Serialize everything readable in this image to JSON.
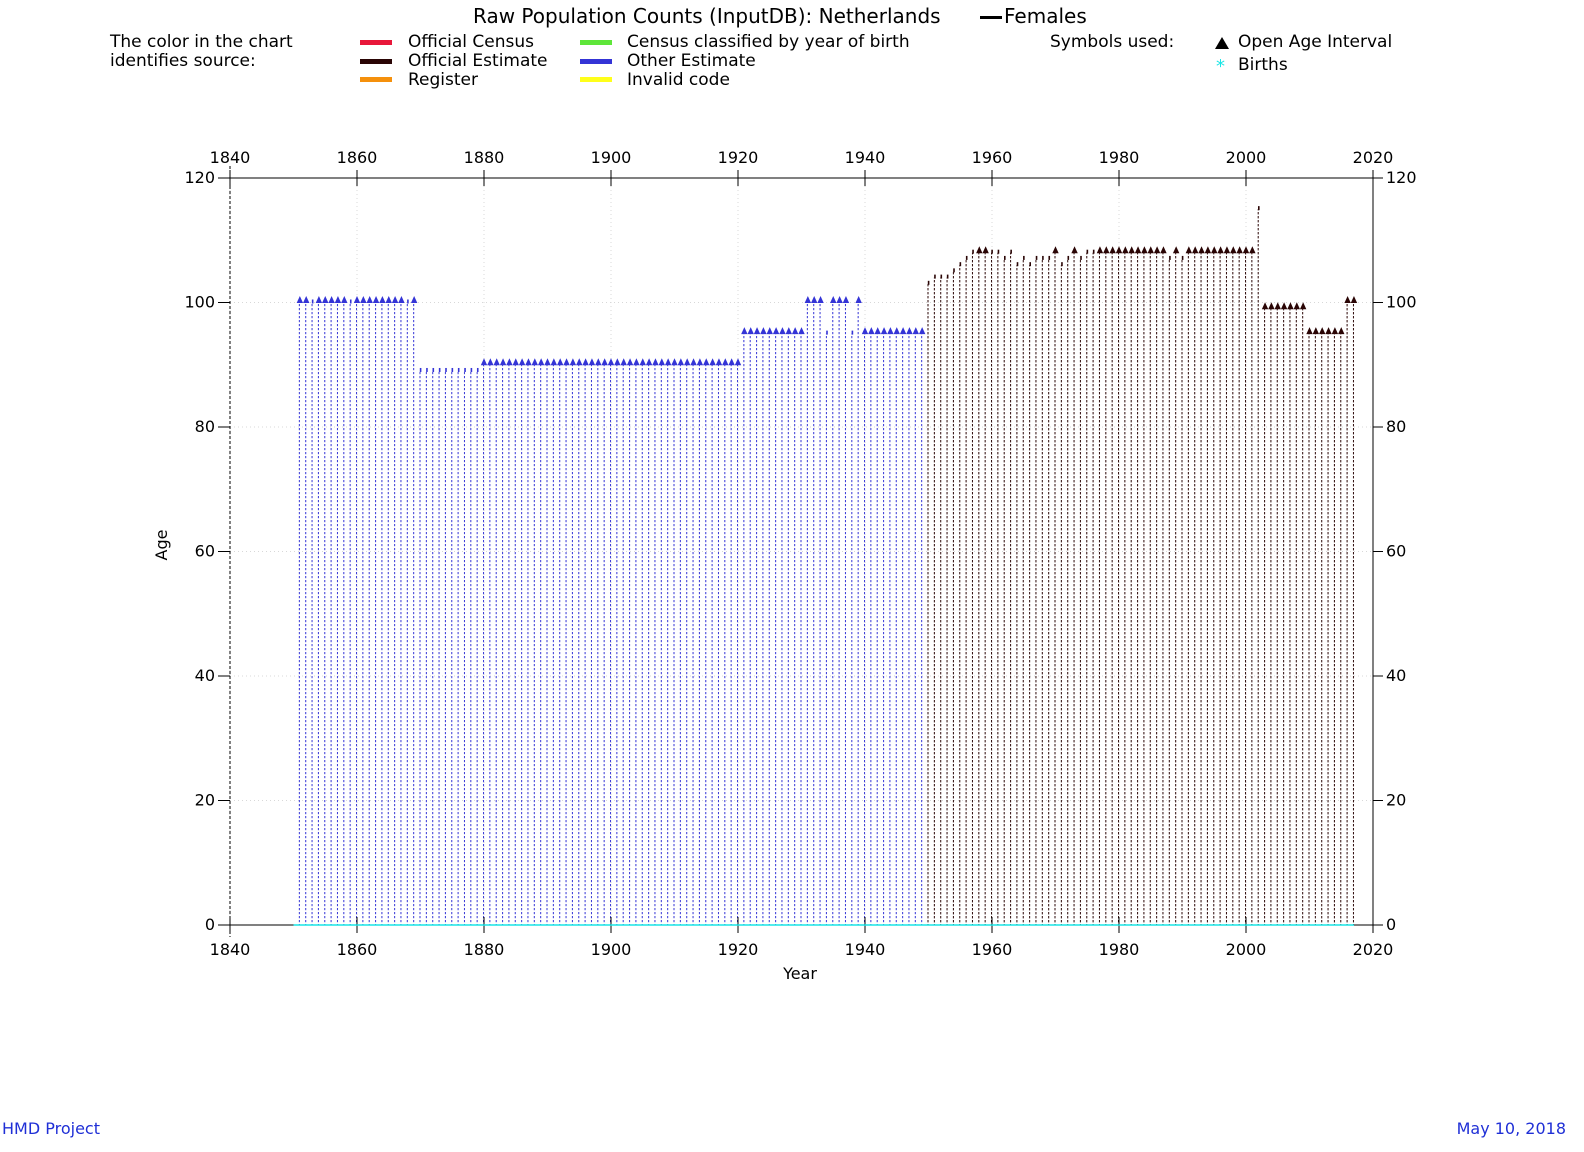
{
  "chart_data": {
    "type": "scatter",
    "title": "Raw Population Counts (InputDB): Netherlands",
    "title_series": "Females",
    "xlabel": "Year",
    "ylabel": "Age",
    "xlim": [
      1840,
      2020
    ],
    "ylim": [
      0,
      120
    ],
    "x_ticks": [
      1840,
      1860,
      1880,
      1900,
      1920,
      1940,
      1960,
      1980,
      2000,
      2020
    ],
    "y_ticks": [
      0,
      20,
      40,
      60,
      80,
      100,
      120
    ],
    "grid": true,
    "legend_source": {
      "caption_line1": "The color in the chart",
      "caption_line2": "identifies source:",
      "items": [
        {
          "label": "Official Census",
          "color": "#e8173a"
        },
        {
          "label": "Official Estimate",
          "color": "#2a0505"
        },
        {
          "label": "Register",
          "color": "#f5900c"
        },
        {
          "label": "Census classified by year of birth",
          "color": "#5ee63a"
        },
        {
          "label": "Other Estimate",
          "color": "#3434d6"
        },
        {
          "label": "Invalid code",
          "color": "#ffff1a"
        }
      ]
    },
    "legend_symbols": {
      "caption": "Symbols used:",
      "items": [
        {
          "label": "Open Age Interval",
          "symbol": "triangle",
          "color": "#000000"
        },
        {
          "label": "Births",
          "symbol": "asterisk",
          "color": "#19e6e6"
        }
      ]
    },
    "series": [
      {
        "name": "Other Estimate",
        "color": "#3434d6",
        "points": [
          {
            "year": 1851,
            "max_age": 100,
            "open": true
          },
          {
            "year": 1852,
            "max_age": 100,
            "open": true
          },
          {
            "year": 1853,
            "max_age": 100,
            "open": false
          },
          {
            "year": 1854,
            "max_age": 100,
            "open": true
          },
          {
            "year": 1855,
            "max_age": 100,
            "open": true
          },
          {
            "year": 1856,
            "max_age": 100,
            "open": true
          },
          {
            "year": 1857,
            "max_age": 100,
            "open": true
          },
          {
            "year": 1858,
            "max_age": 100,
            "open": true
          },
          {
            "year": 1859,
            "max_age": 100,
            "open": false
          },
          {
            "year": 1860,
            "max_age": 100,
            "open": true
          },
          {
            "year": 1861,
            "max_age": 100,
            "open": true
          },
          {
            "year": 1862,
            "max_age": 100,
            "open": true
          },
          {
            "year": 1863,
            "max_age": 100,
            "open": true
          },
          {
            "year": 1864,
            "max_age": 100,
            "open": true
          },
          {
            "year": 1865,
            "max_age": 100,
            "open": true
          },
          {
            "year": 1866,
            "max_age": 100,
            "open": true
          },
          {
            "year": 1867,
            "max_age": 100,
            "open": true
          },
          {
            "year": 1868,
            "max_age": 100,
            "open": false
          },
          {
            "year": 1869,
            "max_age": 100,
            "open": true
          },
          {
            "year": 1870,
            "max_age": 89,
            "open": false
          },
          {
            "year": 1871,
            "max_age": 89,
            "open": false
          },
          {
            "year": 1872,
            "max_age": 89,
            "open": false
          },
          {
            "year": 1873,
            "max_age": 89,
            "open": false
          },
          {
            "year": 1874,
            "max_age": 89,
            "open": false
          },
          {
            "year": 1875,
            "max_age": 89,
            "open": false
          },
          {
            "year": 1876,
            "max_age": 89,
            "open": false
          },
          {
            "year": 1877,
            "max_age": 89,
            "open": false
          },
          {
            "year": 1878,
            "max_age": 89,
            "open": false
          },
          {
            "year": 1879,
            "max_age": 89,
            "open": false
          },
          {
            "year": 1880,
            "max_age": 90,
            "open": true
          },
          {
            "year": 1881,
            "max_age": 90,
            "open": true
          },
          {
            "year": 1882,
            "max_age": 90,
            "open": true
          },
          {
            "year": 1883,
            "max_age": 90,
            "open": true
          },
          {
            "year": 1884,
            "max_age": 90,
            "open": true
          },
          {
            "year": 1885,
            "max_age": 90,
            "open": true
          },
          {
            "year": 1886,
            "max_age": 90,
            "open": true
          },
          {
            "year": 1887,
            "max_age": 90,
            "open": true
          },
          {
            "year": 1888,
            "max_age": 90,
            "open": true
          },
          {
            "year": 1889,
            "max_age": 90,
            "open": true
          },
          {
            "year": 1890,
            "max_age": 90,
            "open": true
          },
          {
            "year": 1891,
            "max_age": 90,
            "open": true
          },
          {
            "year": 1892,
            "max_age": 90,
            "open": true
          },
          {
            "year": 1893,
            "max_age": 90,
            "open": true
          },
          {
            "year": 1894,
            "max_age": 90,
            "open": true
          },
          {
            "year": 1895,
            "max_age": 90,
            "open": true
          },
          {
            "year": 1896,
            "max_age": 90,
            "open": true
          },
          {
            "year": 1897,
            "max_age": 90,
            "open": true
          },
          {
            "year": 1898,
            "max_age": 90,
            "open": true
          },
          {
            "year": 1899,
            "max_age": 90,
            "open": true
          },
          {
            "year": 1900,
            "max_age": 90,
            "open": true
          },
          {
            "year": 1901,
            "max_age": 90,
            "open": true
          },
          {
            "year": 1902,
            "max_age": 90,
            "open": true
          },
          {
            "year": 1903,
            "max_age": 90,
            "open": true
          },
          {
            "year": 1904,
            "max_age": 90,
            "open": true
          },
          {
            "year": 1905,
            "max_age": 90,
            "open": true
          },
          {
            "year": 1906,
            "max_age": 90,
            "open": true
          },
          {
            "year": 1907,
            "max_age": 90,
            "open": true
          },
          {
            "year": 1908,
            "max_age": 90,
            "open": true
          },
          {
            "year": 1909,
            "max_age": 90,
            "open": true
          },
          {
            "year": 1910,
            "max_age": 90,
            "open": true
          },
          {
            "year": 1911,
            "max_age": 90,
            "open": true
          },
          {
            "year": 1912,
            "max_age": 90,
            "open": true
          },
          {
            "year": 1913,
            "max_age": 90,
            "open": true
          },
          {
            "year": 1914,
            "max_age": 90,
            "open": true
          },
          {
            "year": 1915,
            "max_age": 90,
            "open": true
          },
          {
            "year": 1916,
            "max_age": 90,
            "open": true
          },
          {
            "year": 1917,
            "max_age": 90,
            "open": true
          },
          {
            "year": 1918,
            "max_age": 90,
            "open": true
          },
          {
            "year": 1919,
            "max_age": 90,
            "open": true
          },
          {
            "year": 1920,
            "max_age": 90,
            "open": true
          },
          {
            "year": 1921,
            "max_age": 95,
            "open": true
          },
          {
            "year": 1922,
            "max_age": 95,
            "open": true
          },
          {
            "year": 1923,
            "max_age": 95,
            "open": true
          },
          {
            "year": 1924,
            "max_age": 95,
            "open": true
          },
          {
            "year": 1925,
            "max_age": 95,
            "open": true
          },
          {
            "year": 1926,
            "max_age": 95,
            "open": true
          },
          {
            "year": 1927,
            "max_age": 95,
            "open": true
          },
          {
            "year": 1928,
            "max_age": 95,
            "open": true
          },
          {
            "year": 1929,
            "max_age": 95,
            "open": true
          },
          {
            "year": 1930,
            "max_age": 95,
            "open": true
          },
          {
            "year": 1931,
            "max_age": 100,
            "open": true
          },
          {
            "year": 1932,
            "max_age": 100,
            "open": true
          },
          {
            "year": 1933,
            "max_age": 100,
            "open": true
          },
          {
            "year": 1934,
            "max_age": 95,
            "open": false
          },
          {
            "year": 1935,
            "max_age": 100,
            "open": true
          },
          {
            "year": 1936,
            "max_age": 100,
            "open": true
          },
          {
            "year": 1937,
            "max_age": 100,
            "open": true
          },
          {
            "year": 1938,
            "max_age": 95,
            "open": false
          },
          {
            "year": 1939,
            "max_age": 100,
            "open": true
          },
          {
            "year": 1940,
            "max_age": 95,
            "open": true
          },
          {
            "year": 1941,
            "max_age": 95,
            "open": true
          },
          {
            "year": 1942,
            "max_age": 95,
            "open": true
          },
          {
            "year": 1943,
            "max_age": 95,
            "open": true
          },
          {
            "year": 1944,
            "max_age": 95,
            "open": true
          },
          {
            "year": 1945,
            "max_age": 95,
            "open": true
          },
          {
            "year": 1946,
            "max_age": 95,
            "open": true
          },
          {
            "year": 1947,
            "max_age": 95,
            "open": true
          },
          {
            "year": 1948,
            "max_age": 95,
            "open": true
          },
          {
            "year": 1949,
            "max_age": 95,
            "open": true
          }
        ]
      },
      {
        "name": "Official Estimate",
        "color": "#2a0505",
        "points": [
          {
            "year": 1950,
            "max_age": 103,
            "open": false
          },
          {
            "year": 1951,
            "max_age": 104,
            "open": false
          },
          {
            "year": 1952,
            "max_age": 104,
            "open": false
          },
          {
            "year": 1953,
            "max_age": 104,
            "open": false
          },
          {
            "year": 1954,
            "max_age": 105,
            "open": false
          },
          {
            "year": 1955,
            "max_age": 106,
            "open": false
          },
          {
            "year": 1956,
            "max_age": 107,
            "open": false
          },
          {
            "year": 1957,
            "max_age": 108,
            "open": false
          },
          {
            "year": 1958,
            "max_age": 108,
            "open": true
          },
          {
            "year": 1959,
            "max_age": 108,
            "open": true
          },
          {
            "year": 1960,
            "max_age": 108,
            "open": false
          },
          {
            "year": 1961,
            "max_age": 108,
            "open": false
          },
          {
            "year": 1962,
            "max_age": 107,
            "open": false
          },
          {
            "year": 1963,
            "max_age": 108,
            "open": false
          },
          {
            "year": 1964,
            "max_age": 106,
            "open": false
          },
          {
            "year": 1965,
            "max_age": 107,
            "open": false
          },
          {
            "year": 1966,
            "max_age": 106,
            "open": false
          },
          {
            "year": 1967,
            "max_age": 107,
            "open": false
          },
          {
            "year": 1968,
            "max_age": 107,
            "open": false
          },
          {
            "year": 1969,
            "max_age": 107,
            "open": false
          },
          {
            "year": 1970,
            "max_age": 108,
            "open": true
          },
          {
            "year": 1971,
            "max_age": 106,
            "open": false
          },
          {
            "year": 1972,
            "max_age": 107,
            "open": false
          },
          {
            "year": 1973,
            "max_age": 108,
            "open": true
          },
          {
            "year": 1974,
            "max_age": 107,
            "open": false
          },
          {
            "year": 1975,
            "max_age": 108,
            "open": false
          },
          {
            "year": 1976,
            "max_age": 108,
            "open": false
          },
          {
            "year": 1977,
            "max_age": 108,
            "open": true
          },
          {
            "year": 1978,
            "max_age": 108,
            "open": true
          },
          {
            "year": 1979,
            "max_age": 108,
            "open": true
          },
          {
            "year": 1980,
            "max_age": 108,
            "open": true
          },
          {
            "year": 1981,
            "max_age": 108,
            "open": true
          },
          {
            "year": 1982,
            "max_age": 108,
            "open": true
          },
          {
            "year": 1983,
            "max_age": 108,
            "open": true
          },
          {
            "year": 1984,
            "max_age": 108,
            "open": true
          },
          {
            "year": 1985,
            "max_age": 108,
            "open": true
          },
          {
            "year": 1986,
            "max_age": 108,
            "open": true
          },
          {
            "year": 1987,
            "max_age": 108,
            "open": true
          },
          {
            "year": 1988,
            "max_age": 107,
            "open": false
          },
          {
            "year": 1989,
            "max_age": 108,
            "open": true
          },
          {
            "year": 1990,
            "max_age": 107,
            "open": false
          },
          {
            "year": 1991,
            "max_age": 108,
            "open": true
          },
          {
            "year": 1992,
            "max_age": 108,
            "open": true
          },
          {
            "year": 1993,
            "max_age": 108,
            "open": true
          },
          {
            "year": 1994,
            "max_age": 108,
            "open": true
          },
          {
            "year": 1995,
            "max_age": 108,
            "open": true
          },
          {
            "year": 1996,
            "max_age": 108,
            "open": true
          },
          {
            "year": 1997,
            "max_age": 108,
            "open": true
          },
          {
            "year": 1998,
            "max_age": 108,
            "open": true
          },
          {
            "year": 1999,
            "max_age": 108,
            "open": true
          },
          {
            "year": 2000,
            "max_age": 108,
            "open": true
          },
          {
            "year": 2001,
            "max_age": 108,
            "open": true
          },
          {
            "year": 2002,
            "max_age": 115,
            "open": false
          },
          {
            "year": 2003,
            "max_age": 99,
            "open": true
          },
          {
            "year": 2004,
            "max_age": 99,
            "open": true
          },
          {
            "year": 2005,
            "max_age": 99,
            "open": true
          },
          {
            "year": 2006,
            "max_age": 99,
            "open": true
          },
          {
            "year": 2007,
            "max_age": 99,
            "open": true
          },
          {
            "year": 2008,
            "max_age": 99,
            "open": true
          },
          {
            "year": 2009,
            "max_age": 99,
            "open": true
          },
          {
            "year": 2010,
            "max_age": 95,
            "open": true
          },
          {
            "year": 2011,
            "max_age": 95,
            "open": true
          },
          {
            "year": 2012,
            "max_age": 95,
            "open": true
          },
          {
            "year": 2013,
            "max_age": 95,
            "open": true
          },
          {
            "year": 2014,
            "max_age": 95,
            "open": true
          },
          {
            "year": 2015,
            "max_age": 95,
            "open": true
          },
          {
            "year": 2016,
            "max_age": 100,
            "open": true
          },
          {
            "year": 2017,
            "max_age": 100,
            "open": true
          }
        ]
      },
      {
        "name": "Births",
        "color": "#19e6e6",
        "x_range": [
          1850,
          2017
        ],
        "age": 0
      }
    ]
  },
  "footer": {
    "left": "HMD Project",
    "right": "May 10, 2018"
  }
}
